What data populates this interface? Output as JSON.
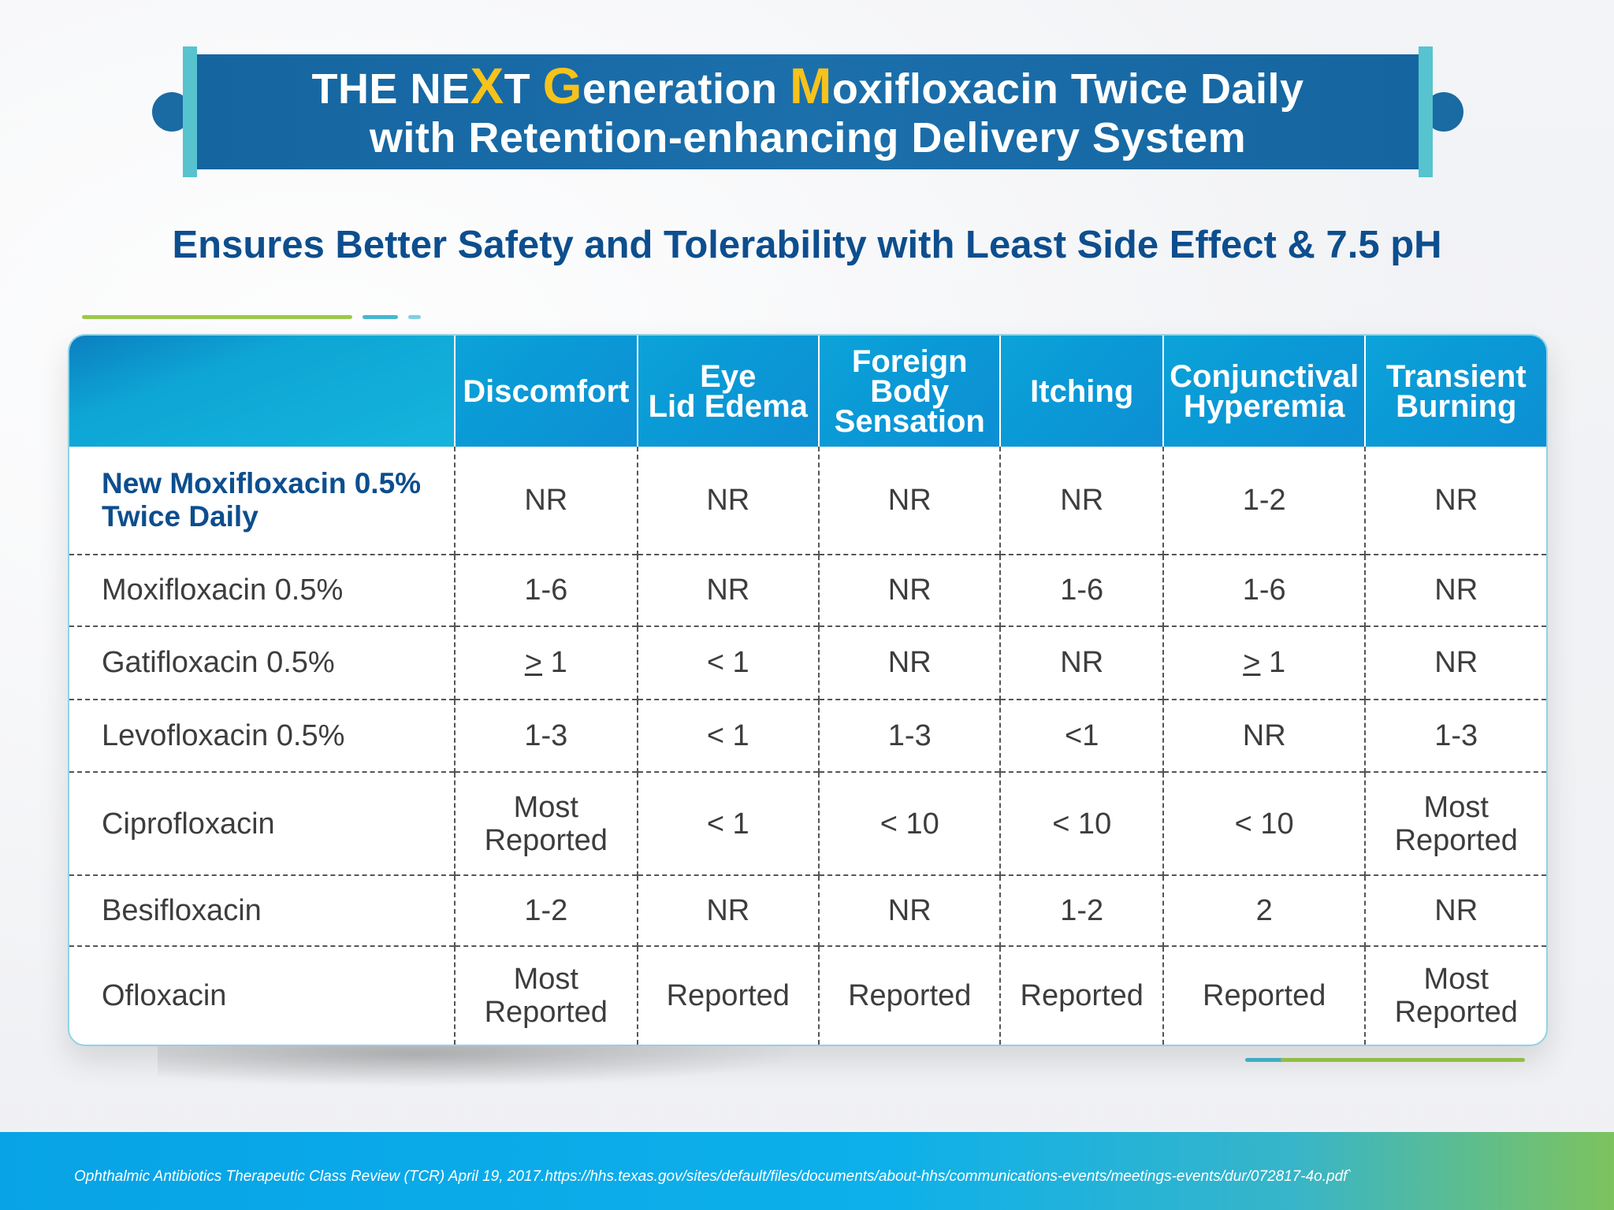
{
  "banner": {
    "line1": {
      "p1": "THE NE",
      "x": "X",
      "p2": "T ",
      "g": "G",
      "p3": "eneration ",
      "m": "M",
      "p4": "oxifloxacin Twice Daily"
    },
    "line2": "with Retention-enhancing Delivery System"
  },
  "subtitle": "Ensures Better Safety and Tolerability with Least Side Effect & 7.5 pH",
  "table": {
    "headers": [
      [
        "Discomfort"
      ],
      [
        "Eye",
        "Lid Edema"
      ],
      [
        "Foreign",
        "Body",
        "Sensation"
      ],
      [
        "Itching"
      ],
      [
        "Conjunctival",
        "Hyperemia"
      ],
      [
        "Transient",
        "Burning"
      ]
    ],
    "rows": [
      {
        "label": [
          "New Moxifloxacin 0.5%",
          "Twice Daily"
        ],
        "cells": [
          "NR",
          "NR",
          "NR",
          "NR",
          "1-2",
          "NR"
        ]
      },
      {
        "label": [
          "Moxifloxacin 0.5%"
        ],
        "cells": [
          "1-6",
          "NR",
          "NR",
          "1-6",
          "1-6",
          "NR"
        ]
      },
      {
        "label": [
          "Gatifloxacin 0.5%"
        ],
        "cells": [
          "> 1",
          "< 1",
          "NR",
          "NR",
          "> 1",
          "NR"
        ]
      },
      {
        "label": [
          "Levofloxacin 0.5%"
        ],
        "cells": [
          "1-3",
          "< 1",
          "1-3",
          "<1",
          "NR",
          "1-3"
        ]
      },
      {
        "label": [
          "Ciprofloxacin"
        ],
        "cells": [
          "Most Reported",
          "< 1",
          "< 10",
          "< 10",
          "< 10",
          "Most Reported"
        ]
      },
      {
        "label": [
          "Besifloxacin"
        ],
        "cells": [
          "1-2",
          "NR",
          "NR",
          "1-2",
          "2",
          "NR"
        ]
      },
      {
        "label": [
          "Ofloxacin"
        ],
        "cells": [
          "Most Reported",
          "Reported",
          "Reported",
          "Reported",
          "Reported",
          "Most Reported"
        ]
      }
    ]
  },
  "footnote": "Ophthalmic Antibiotics Therapeutic Class Review (TCR) April 19, 2017.https://hhs.texas.gov/sites/default/files/documents/about-hhs/communications-events/meetings-events/dur/072817-4o.pdf`",
  "colors": {
    "banner": "#1565a0",
    "accent": "#f6c21c",
    "title": "#0d4e8e",
    "header": "#0a9ad6"
  }
}
